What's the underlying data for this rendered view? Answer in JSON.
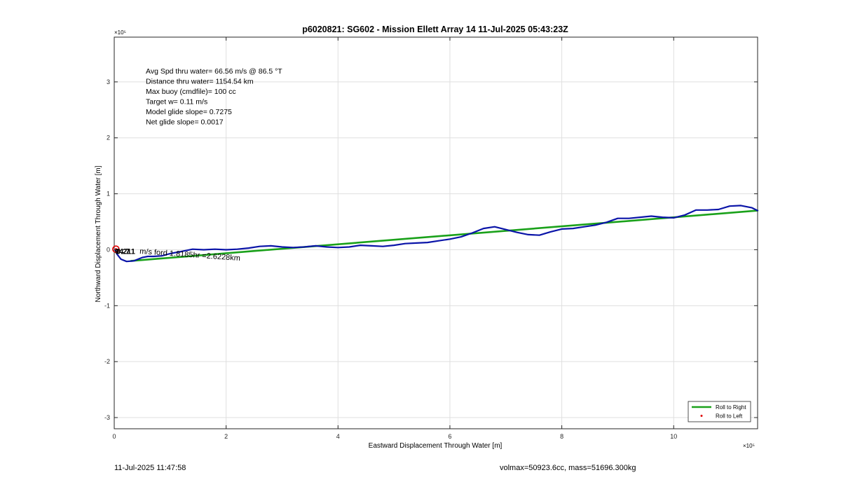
{
  "chart_data": {
    "type": "line",
    "title": "p6020821: SG602 - Mission Ellett Array 14 11-Jul-2025 05:43:23Z",
    "xlabel": "Eastward Displacement Through Water [m]",
    "ylabel": "Northward Displacement Through Water [m]",
    "x_exponent_label": "×10⁵",
    "y_exponent_label": "×10⁵",
    "xlim": [
      0,
      11.5
    ],
    "ylim": [
      -3.2,
      3.8
    ],
    "xticks": [
      0,
      2,
      4,
      6,
      8,
      10
    ],
    "yticks": [
      -3,
      -2,
      -1,
      0,
      1,
      2,
      3
    ],
    "grid": true,
    "legend_position": "bottom-right",
    "legend": [
      {
        "label": "Roll to Right",
        "color": "#1aa11a",
        "kind": "line"
      },
      {
        "label": "Roll to Left",
        "color": "#e00000",
        "kind": "marker"
      }
    ],
    "series": [
      {
        "name": "Roll to Right",
        "color": "#1aa11a",
        "x": [
          0.3,
          11.5
        ],
        "y": [
          -0.2,
          0.7
        ]
      },
      {
        "name": "track",
        "color": "#0a14a8",
        "x": [
          0.02,
          0.05,
          0.12,
          0.22,
          0.35,
          0.5,
          0.6,
          0.7,
          0.85,
          1.0,
          1.2,
          1.4,
          1.6,
          1.8,
          2.0,
          2.2,
          2.4,
          2.6,
          2.8,
          3.0,
          3.2,
          3.4,
          3.6,
          3.8,
          4.0,
          4.2,
          4.4,
          4.6,
          4.8,
          5.0,
          5.2,
          5.4,
          5.6,
          5.8,
          6.0,
          6.2,
          6.4,
          6.6,
          6.8,
          7.0,
          7.2,
          7.4,
          7.6,
          7.8,
          8.0,
          8.2,
          8.4,
          8.6,
          8.8,
          9.0,
          9.2,
          9.4,
          9.6,
          9.8,
          10.0,
          10.2,
          10.4,
          10.6,
          10.8,
          11.0,
          11.2,
          11.4,
          11.5
        ],
        "y": [
          0.0,
          -0.08,
          -0.17,
          -0.21,
          -0.2,
          -0.14,
          -0.12,
          -0.12,
          -0.11,
          -0.07,
          -0.03,
          0.01,
          0.0,
          0.01,
          0.0,
          0.01,
          0.03,
          0.06,
          0.07,
          0.05,
          0.04,
          0.05,
          0.07,
          0.05,
          0.04,
          0.05,
          0.08,
          0.07,
          0.06,
          0.08,
          0.11,
          0.12,
          0.13,
          0.16,
          0.19,
          0.23,
          0.3,
          0.38,
          0.41,
          0.36,
          0.31,
          0.27,
          0.26,
          0.32,
          0.37,
          0.38,
          0.41,
          0.44,
          0.49,
          0.56,
          0.56,
          0.58,
          0.6,
          0.58,
          0.57,
          0.62,
          0.71,
          0.71,
          0.72,
          0.78,
          0.79,
          0.75,
          0.7
        ]
      }
    ],
    "red_marker": {
      "x": 0.03,
      "y": 0.01
    },
    "annotations": [
      "Avg Spd thru water= 66.56 m/s @  86.5 °T",
      "Distance thru water= 1154.54 km",
      "Max buoy (cmdfile)= 100 cc",
      "Target w= 0.11 m/s",
      "Model glide slope= 0.7275",
      "Net glide slope= 0.0017"
    ],
    "point_labels": [
      {
        "text": "04.7",
        "x": 0.0,
        "y": 0.0
      },
      {
        "text": "0.211",
        "x": 0.0,
        "y": 0.0
      },
      {
        "text": "m/s ford 1.8185hr =2.6228km",
        "x": 0.5,
        "y": -0.15
      }
    ]
  },
  "footer": {
    "left": "11-Jul-2025 11:47:58",
    "right": "volmax=50923.6cc, mass=51696.300kg"
  }
}
